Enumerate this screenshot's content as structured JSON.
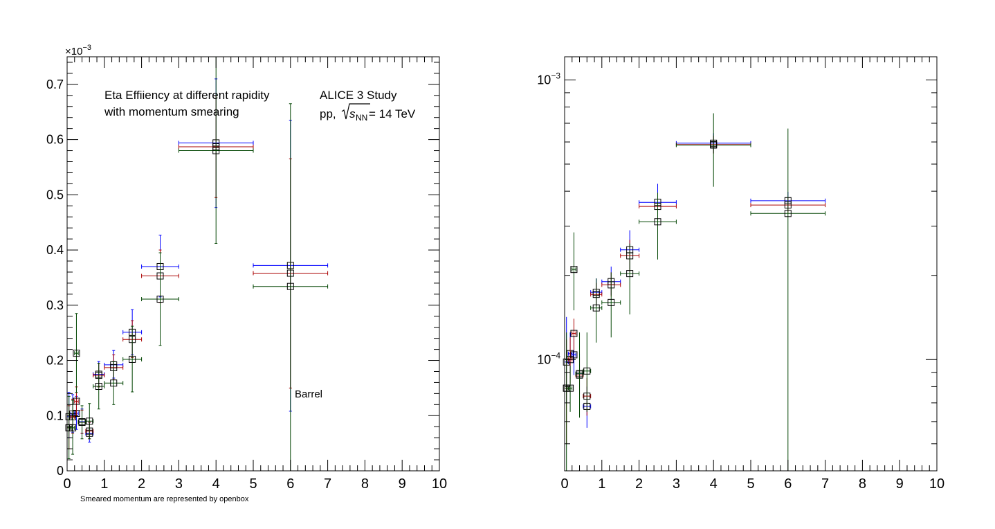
{
  "chart_data": [
    {
      "type": "scatter",
      "title": "",
      "xlabel": "",
      "ylabel": "",
      "xlim": [
        0,
        10
      ],
      "ylim": [
        0,
        0.00075
      ],
      "yscale": "linear",
      "exponent_label": "×10",
      "exponent_power": "−3",
      "x_ticks": [
        "0",
        "1",
        "2",
        "3",
        "4",
        "5",
        "6",
        "7",
        "8",
        "9",
        "10"
      ],
      "y_ticks": [
        "0",
        "0.1",
        "0.2",
        "0.3",
        "0.4",
        "0.5",
        "0.6",
        "0.7"
      ],
      "grid": false,
      "annotations": {
        "title_line1": "Eta Effiiency at different rapidity",
        "title_line2": "with momentum smearing",
        "study": "ALICE 3 Study",
        "system_prefix": "pp, ",
        "energy_s": "s",
        "energy_sub": "NN",
        "energy_suffix": " = 14 TeV",
        "region": "Barrel",
        "footnote": "Smeared momentum are represented by openbox"
      },
      "series": [
        {
          "color": "#0000ff",
          "points": [
            {
              "x": 0.05,
              "xerr": 0.05,
              "y": 9.8e-05,
              "ylo": 6e-05,
              "yhi": 0.000142
            },
            {
              "x": 0.15,
              "xerr": 0.05,
              "y": 0.000103,
              "ylo": 7e-05,
              "yhi": 0.000138
            },
            {
              "x": 0.25,
              "xerr": 0.05,
              "y": 0.000104,
              "ylo": 7.5e-05,
              "yhi": 0.000135
            },
            {
              "x": 0.4,
              "xerr": 0.1,
              "y": 8.9e-05,
              "ylo": 6.8e-05,
              "yhi": 0.000112
            },
            {
              "x": 0.6,
              "xerr": 0.1,
              "y": 6.8e-05,
              "ylo": 5.2e-05,
              "yhi": 8.8e-05
            },
            {
              "x": 0.85,
              "xerr": 0.15,
              "y": 0.000175,
              "ylo": 0.000152,
              "yhi": 0.000198
            },
            {
              "x": 1.25,
              "xerr": 0.25,
              "y": 0.000192,
              "ylo": 0.000168,
              "yhi": 0.000218
            },
            {
              "x": 1.75,
              "xerr": 0.25,
              "y": 0.000251,
              "ylo": 0.00021,
              "yhi": 0.000292
            },
            {
              "x": 2.5,
              "xerr": 0.5,
              "y": 0.00037,
              "ylo": 0.000315,
              "yhi": 0.000427
            },
            {
              "x": 4.0,
              "xerr": 1.0,
              "y": 0.000594,
              "ylo": 0.000477,
              "yhi": 0.00071
            },
            {
              "x": 6.0,
              "xerr": 1.0,
              "y": 0.000372,
              "ylo": 0.000108,
              "yhi": 0.000635
            }
          ]
        },
        {
          "color": "#aa0000",
          "points": [
            {
              "x": 0.05,
              "xerr": 0.05,
              "y": 7.8e-05,
              "ylo": 4e-05,
              "yhi": 0.000118
            },
            {
              "x": 0.15,
              "xerr": 0.05,
              "y": 9.8e-05,
              "ylo": 6.8e-05,
              "yhi": 0.00013
            },
            {
              "x": 0.25,
              "xerr": 0.05,
              "y": 0.000126,
              "ylo": 0.0001,
              "yhi": 0.000152
            },
            {
              "x": 0.4,
              "xerr": 0.1,
              "y": 8.8e-05,
              "ylo": 6.8e-05,
              "yhi": 0.00011
            },
            {
              "x": 0.6,
              "xerr": 0.1,
              "y": 7.2e-05,
              "ylo": 5.8e-05,
              "yhi": 8.8e-05
            },
            {
              "x": 0.85,
              "xerr": 0.15,
              "y": 0.000173,
              "ylo": 0.000152,
              "yhi": 0.000195
            },
            {
              "x": 1.25,
              "xerr": 0.25,
              "y": 0.000187,
              "ylo": 0.000165,
              "yhi": 0.00021
            },
            {
              "x": 1.75,
              "xerr": 0.25,
              "y": 0.000238,
              "ylo": 0.000205,
              "yhi": 0.000272
            },
            {
              "x": 2.5,
              "xerr": 0.5,
              "y": 0.000353,
              "ylo": 0.000305,
              "yhi": 0.0004
            },
            {
              "x": 4.0,
              "xerr": 1.0,
              "y": 0.000587,
              "ylo": 0.000495,
              "yhi": 0.00068
            },
            {
              "x": 6.0,
              "xerr": 1.0,
              "y": 0.000358,
              "ylo": 0.00015,
              "yhi": 0.000565
            }
          ]
        },
        {
          "color": "#004400",
          "points": [
            {
              "x": 0.05,
              "xerr": 0.05,
              "y": 7.8e-05,
              "ylo": 2.2e-05,
              "yhi": 0.000135
            },
            {
              "x": 0.15,
              "xerr": 0.05,
              "y": 7.8e-05,
              "ylo": 3e-05,
              "yhi": 0.000128
            },
            {
              "x": 0.25,
              "xerr": 0.05,
              "y": 0.000213,
              "ylo": 0.000142,
              "yhi": 0.000285
            },
            {
              "x": 0.4,
              "xerr": 0.1,
              "y": 8.8e-05,
              "ylo": 5.8e-05,
              "yhi": 0.000118
            },
            {
              "x": 0.6,
              "xerr": 0.1,
              "y": 9e-05,
              "ylo": 5.8e-05,
              "yhi": 0.000122
            },
            {
              "x": 0.85,
              "xerr": 0.15,
              "y": 0.000153,
              "ylo": 0.000112,
              "yhi": 0.000195
            },
            {
              "x": 1.25,
              "xerr": 0.25,
              "y": 0.000159,
              "ylo": 0.00012,
              "yhi": 0.000198
            },
            {
              "x": 1.75,
              "xerr": 0.25,
              "y": 0.000202,
              "ylo": 0.000143,
              "yhi": 0.000262
            },
            {
              "x": 2.5,
              "xerr": 0.5,
              "y": 0.000311,
              "ylo": 0.000227,
              "yhi": 0.000395
            },
            {
              "x": 4.0,
              "xerr": 1.0,
              "y": 0.00058,
              "ylo": 0.000412,
              "yhi": 0.00075
            },
            {
              "x": 6.0,
              "xerr": 1.0,
              "y": 0.000334,
              "ylo": 0.0,
              "yhi": 0.000665
            }
          ]
        }
      ]
    },
    {
      "type": "scatter",
      "title": "",
      "xlabel": "",
      "ylabel": "",
      "xlim": [
        0,
        10
      ],
      "ylim": [
        4e-05,
        0.00121
      ],
      "yscale": "log",
      "x_ticks": [
        "0",
        "1",
        "2",
        "3",
        "4",
        "5",
        "6",
        "7",
        "8",
        "9",
        "10"
      ],
      "y_major_ticks": [
        {
          "value": 0.0001,
          "base": "10",
          "power": "−4"
        },
        {
          "value": 0.001,
          "base": "10",
          "power": "−3"
        }
      ],
      "grid": false,
      "series": [
        {
          "color": "#0000ff",
          "points": [
            {
              "x": 0.05,
              "xerr": 0.05,
              "y": 9.8e-05,
              "ylo": 7e-05,
              "yhi": 0.000142
            },
            {
              "x": 0.15,
              "xerr": 0.05,
              "y": 0.000105,
              "ylo": 8.5e-05,
              "yhi": 0.000125
            },
            {
              "x": 0.25,
              "xerr": 0.05,
              "y": 0.000104,
              "ylo": 8.8e-05,
              "yhi": 0.000122
            },
            {
              "x": 0.4,
              "xerr": 0.1,
              "y": 8.9e-05,
              "ylo": 7.5e-05,
              "yhi": 0.000105
            },
            {
              "x": 0.6,
              "xerr": 0.1,
              "y": 6.8e-05,
              "ylo": 5.7e-05,
              "yhi": 8e-05
            },
            {
              "x": 0.85,
              "xerr": 0.15,
              "y": 0.000174,
              "ylo": 0.000155,
              "yhi": 0.000195
            },
            {
              "x": 1.25,
              "xerr": 0.25,
              "y": 0.00019,
              "ylo": 0.00017,
              "yhi": 0.000215
            },
            {
              "x": 1.75,
              "xerr": 0.25,
              "y": 0.000247,
              "ylo": 0.00021,
              "yhi": 0.00029
            },
            {
              "x": 2.5,
              "xerr": 0.5,
              "y": 0.000365,
              "ylo": 0.000315,
              "yhi": 0.000425
            },
            {
              "x": 4.0,
              "xerr": 1.0,
              "y": 0.000594,
              "ylo": 0.000548,
              "yhi": 0.000645
            },
            {
              "x": 6.0,
              "xerr": 1.0,
              "y": 0.00037,
              "ylo": 0.000345,
              "yhi": 0.000398
            }
          ]
        },
        {
          "color": "#aa0000",
          "points": [
            {
              "x": 0.05,
              "xerr": 0.05,
              "y": 7.9e-05,
              "ylo": 5e-05,
              "yhi": 0.000118
            },
            {
              "x": 0.15,
              "xerr": 0.05,
              "y": 0.0001,
              "ylo": 8.2e-05,
              "yhi": 0.00012
            },
            {
              "x": 0.25,
              "xerr": 0.05,
              "y": 0.000124,
              "ylo": 0.000108,
              "yhi": 0.00014
            },
            {
              "x": 0.4,
              "xerr": 0.1,
              "y": 8.8e-05,
              "ylo": 7.5e-05,
              "yhi": 0.000102
            },
            {
              "x": 0.6,
              "xerr": 0.1,
              "y": 7.4e-05,
              "ylo": 6.3e-05,
              "yhi": 8.6e-05
            },
            {
              "x": 0.85,
              "xerr": 0.15,
              "y": 0.000171,
              "ylo": 0.000155,
              "yhi": 0.000188
            },
            {
              "x": 1.25,
              "xerr": 0.25,
              "y": 0.000185,
              "ylo": 0.000168,
              "yhi": 0.000205
            },
            {
              "x": 1.75,
              "xerr": 0.25,
              "y": 0.000235,
              "ylo": 0.000205,
              "yhi": 0.000268
            },
            {
              "x": 2.5,
              "xerr": 0.5,
              "y": 0.000353,
              "ylo": 0.000318,
              "yhi": 0.000392
            },
            {
              "x": 4.0,
              "xerr": 1.0,
              "y": 0.000587,
              "ylo": 0.000545,
              "yhi": 0.000632
            },
            {
              "x": 6.0,
              "xerr": 1.0,
              "y": 0.000357,
              "ylo": 0.000335,
              "yhi": 0.00038
            }
          ]
        },
        {
          "color": "#004400",
          "points": [
            {
              "x": 0.05,
              "xerr": 0.05,
              "y": 7.9e-05,
              "ylo": 4e-05,
              "yhi": 0.000125
            },
            {
              "x": 0.15,
              "xerr": 0.05,
              "y": 7.9e-05,
              "ylo": 6.5e-05,
              "yhi": 9.5e-05
            },
            {
              "x": 0.25,
              "xerr": 0.05,
              "y": 0.00021,
              "ylo": 0.00015,
              "yhi": 0.000285
            },
            {
              "x": 0.4,
              "xerr": 0.1,
              "y": 8.9e-05,
              "ylo": 6.2e-05,
              "yhi": 0.000125
            },
            {
              "x": 0.6,
              "xerr": 0.1,
              "y": 9.1e-05,
              "ylo": 6.5e-05,
              "yhi": 0.000125
            },
            {
              "x": 0.85,
              "xerr": 0.15,
              "y": 0.000153,
              "ylo": 0.000115,
              "yhi": 0.000195
            },
            {
              "x": 1.25,
              "xerr": 0.25,
              "y": 0.00016,
              "ylo": 0.00012,
              "yhi": 0.000205
            },
            {
              "x": 1.75,
              "xerr": 0.25,
              "y": 0.000203,
              "ylo": 0.000145,
              "yhi": 0.00026
            },
            {
              "x": 2.5,
              "xerr": 0.5,
              "y": 0.000311,
              "ylo": 0.000228,
              "yhi": 0.000395
            },
            {
              "x": 4.0,
              "xerr": 1.0,
              "y": 0.000585,
              "ylo": 0.000415,
              "yhi": 0.00076
            },
            {
              "x": 6.0,
              "xerr": 1.0,
              "y": 0.000333,
              "ylo": 4e-05,
              "yhi": 0.00067
            }
          ]
        }
      ]
    }
  ]
}
